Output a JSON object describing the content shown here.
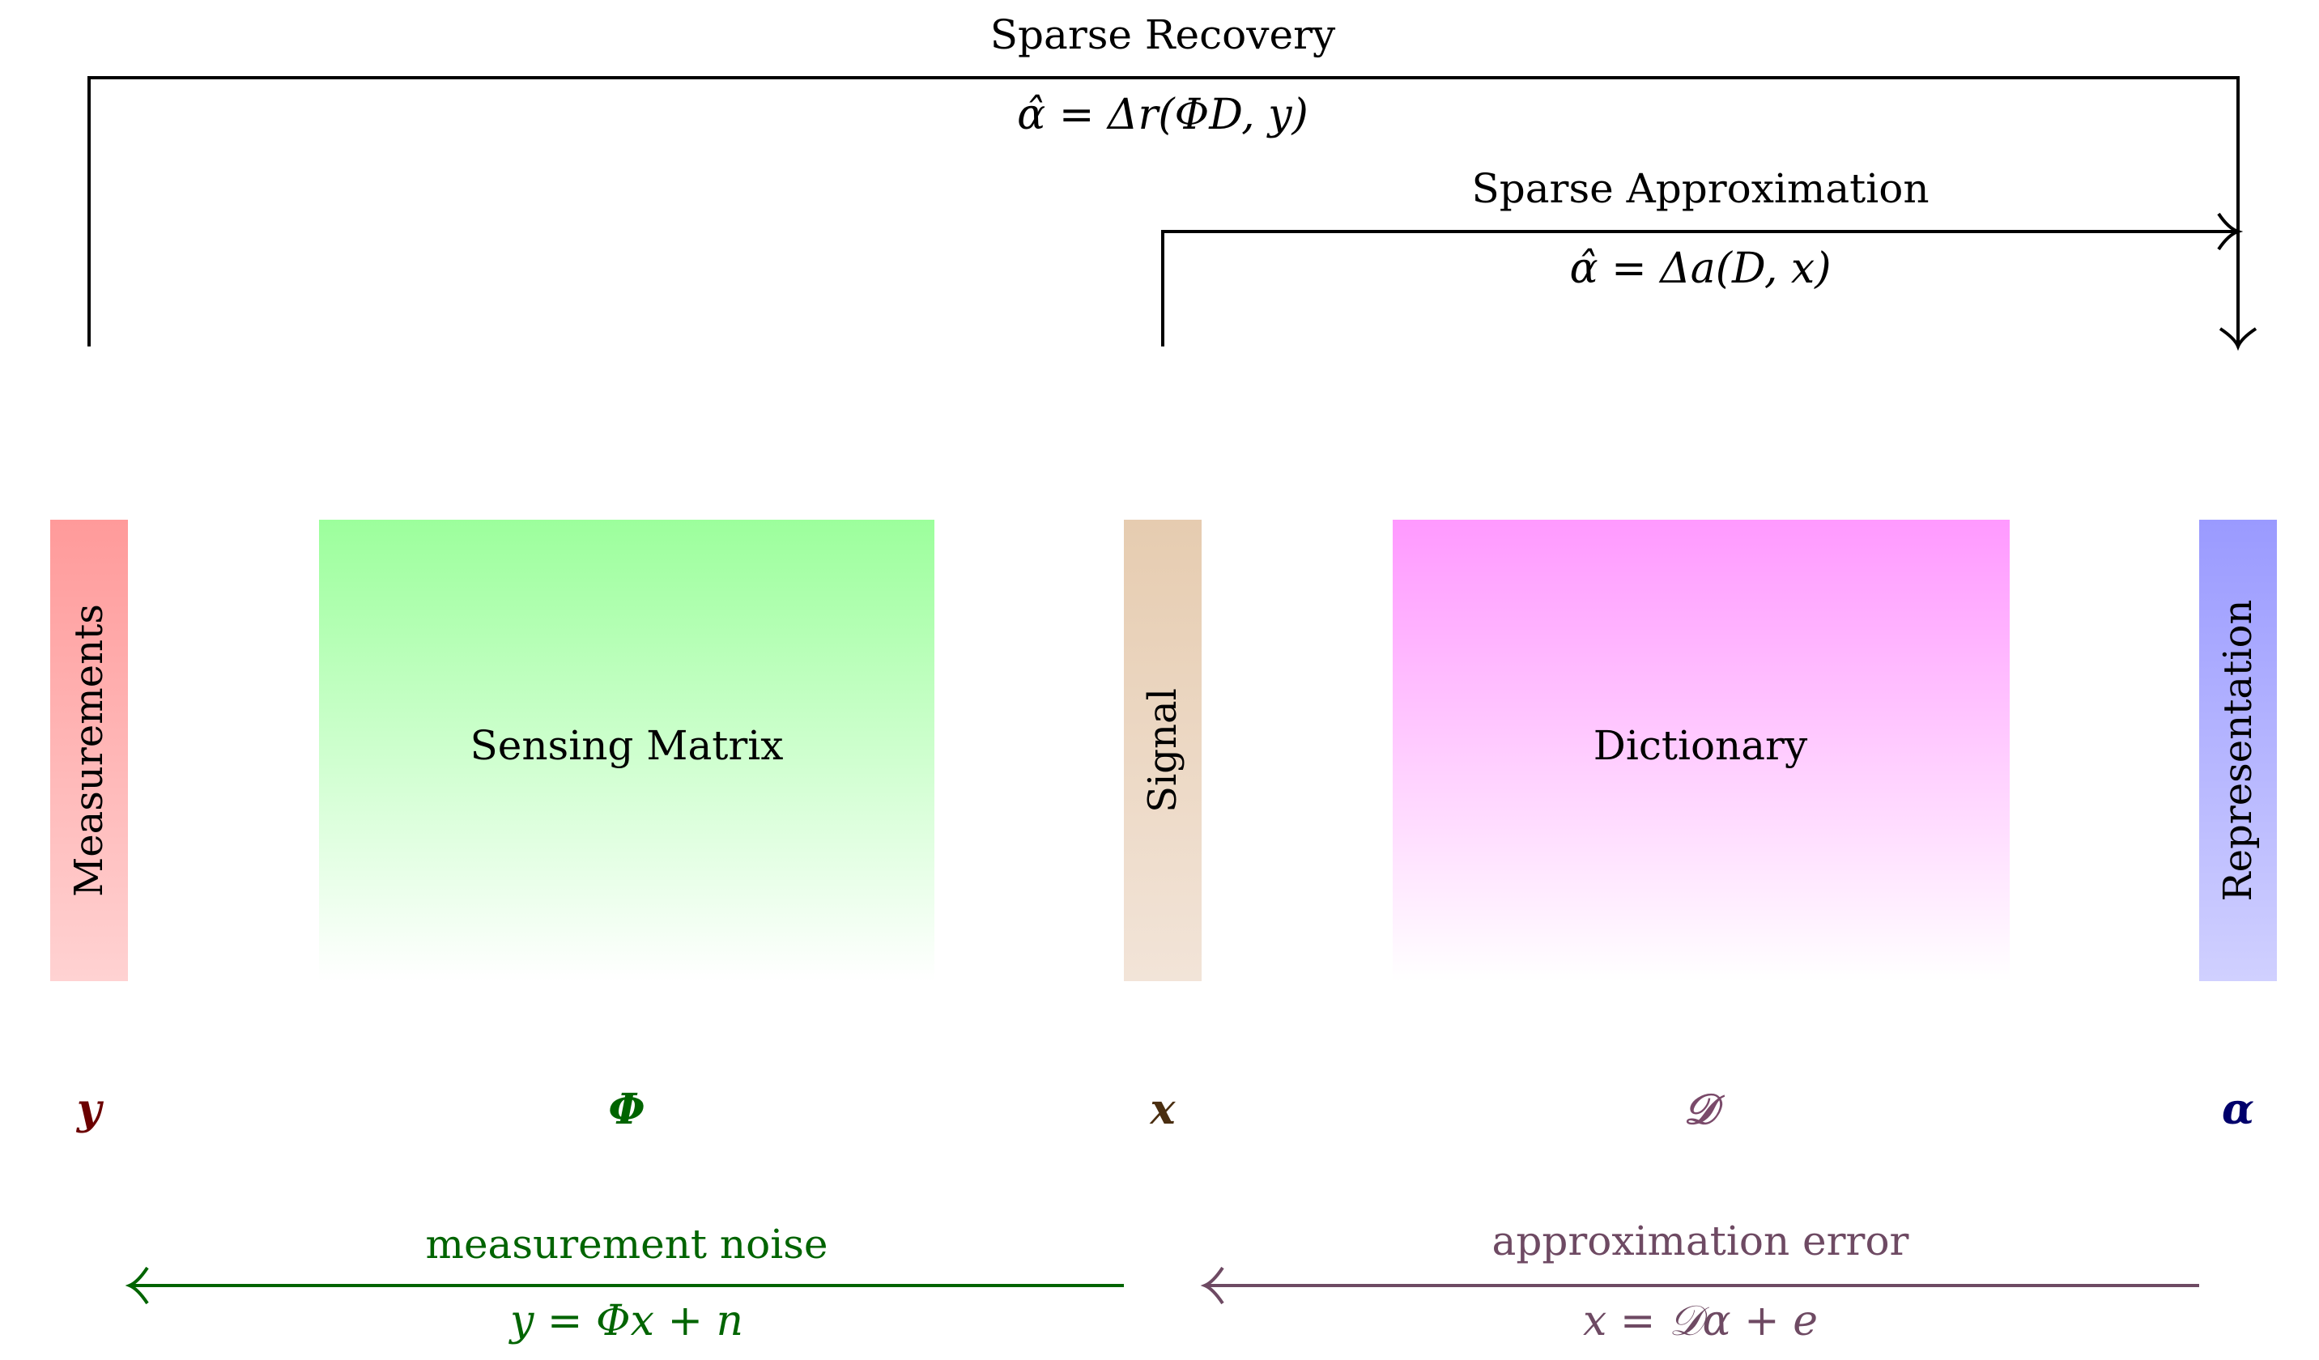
{
  "recovery": {
    "title": "Sparse Recovery",
    "formula": "α̂ = Δr(ΦD, y)"
  },
  "approximation": {
    "title": "Sparse Approximation",
    "formula": "α̂ = Δa(D, x)"
  },
  "blocks": {
    "measurements": {
      "label": "Measurements",
      "symbol": "y",
      "color_top": "#ff9a9a",
      "color_bottom": "#ffd2d2",
      "symbol_color": "#6b0000"
    },
    "sensing_matrix": {
      "label": "Sensing Matrix",
      "symbol": "Φ",
      "color_top": "#9cff9c",
      "color_bottom": "#ffffff",
      "symbol_color": "#006400"
    },
    "signal": {
      "label": "Signal",
      "symbol": "x",
      "color_top": "#e6ccb0",
      "color_bottom": "#f2e4d8",
      "symbol_color": "#4a2e10"
    },
    "dictionary": {
      "label": "Dictionary",
      "symbol": "𝒟",
      "color_top": "#ff99ff",
      "color_bottom": "#ffffff",
      "symbol_color": "#7a4a6a"
    },
    "representation": {
      "label": "Representation",
      "symbol": "α",
      "color_top": "#9a9aff",
      "color_bottom": "#d0d0ff",
      "symbol_color": "#00006b"
    }
  },
  "noise": {
    "label": "measurement noise",
    "formula": "y = Φx + n",
    "color": "#006400"
  },
  "error": {
    "label": "approximation error",
    "formula": "x = 𝒟α + e",
    "color": "#6e4a63"
  }
}
